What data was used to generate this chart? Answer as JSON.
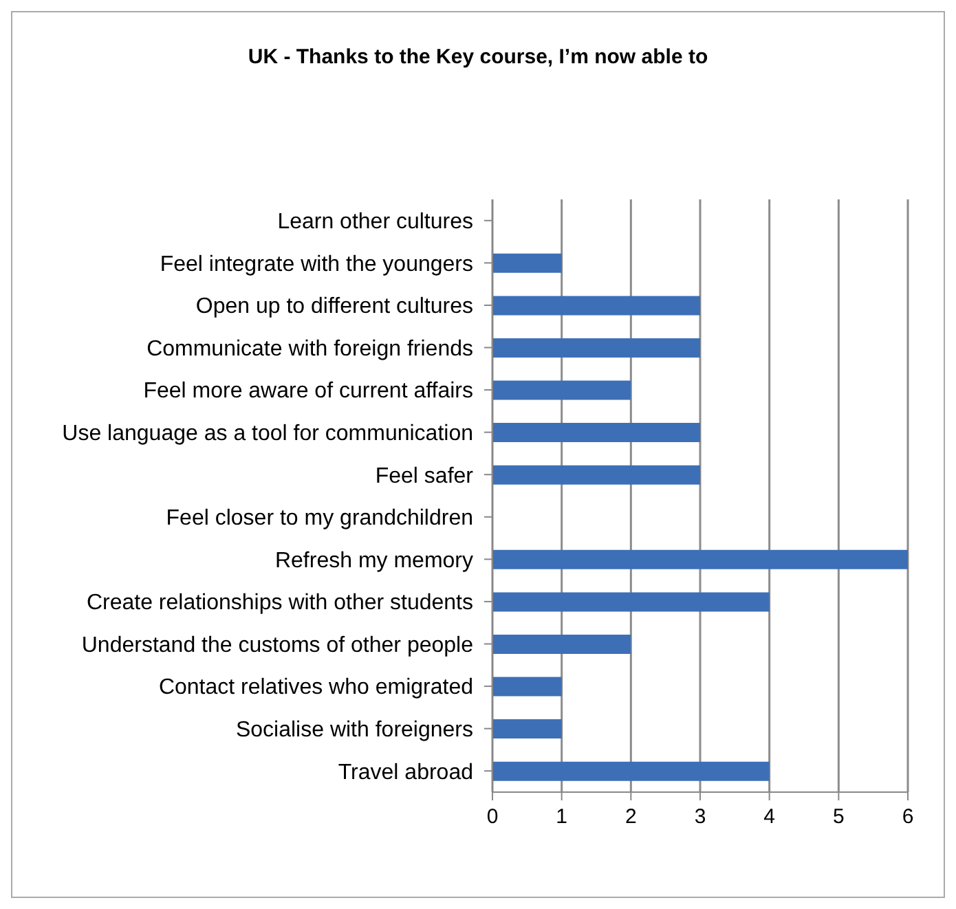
{
  "chart_data": {
    "type": "bar",
    "orientation": "horizontal",
    "title": "UK - Thanks to the Key course, I’m now able to",
    "categories": [
      "Learn other cultures",
      "Feel integrate with the youngers",
      "Open up to different cultures",
      "Communicate with foreign friends",
      "Feel more aware of current affairs",
      "Use language as a tool for communication",
      "Feel safer",
      "Feel closer to my grandchildren",
      "Refresh my memory",
      "Create relationships with other students",
      "Understand the customs  of other people",
      "Contact relatives who emigrated",
      "Socialise with foreigners",
      "Travel abroad"
    ],
    "values": [
      0,
      1,
      3,
      3,
      2,
      3,
      3,
      0,
      6,
      4,
      2,
      1,
      1,
      4
    ],
    "color": "#3d6fb6",
    "xlim": [
      0,
      6
    ],
    "xticks": [
      0,
      1,
      2,
      3,
      4,
      5,
      6
    ],
    "grid": "x"
  }
}
